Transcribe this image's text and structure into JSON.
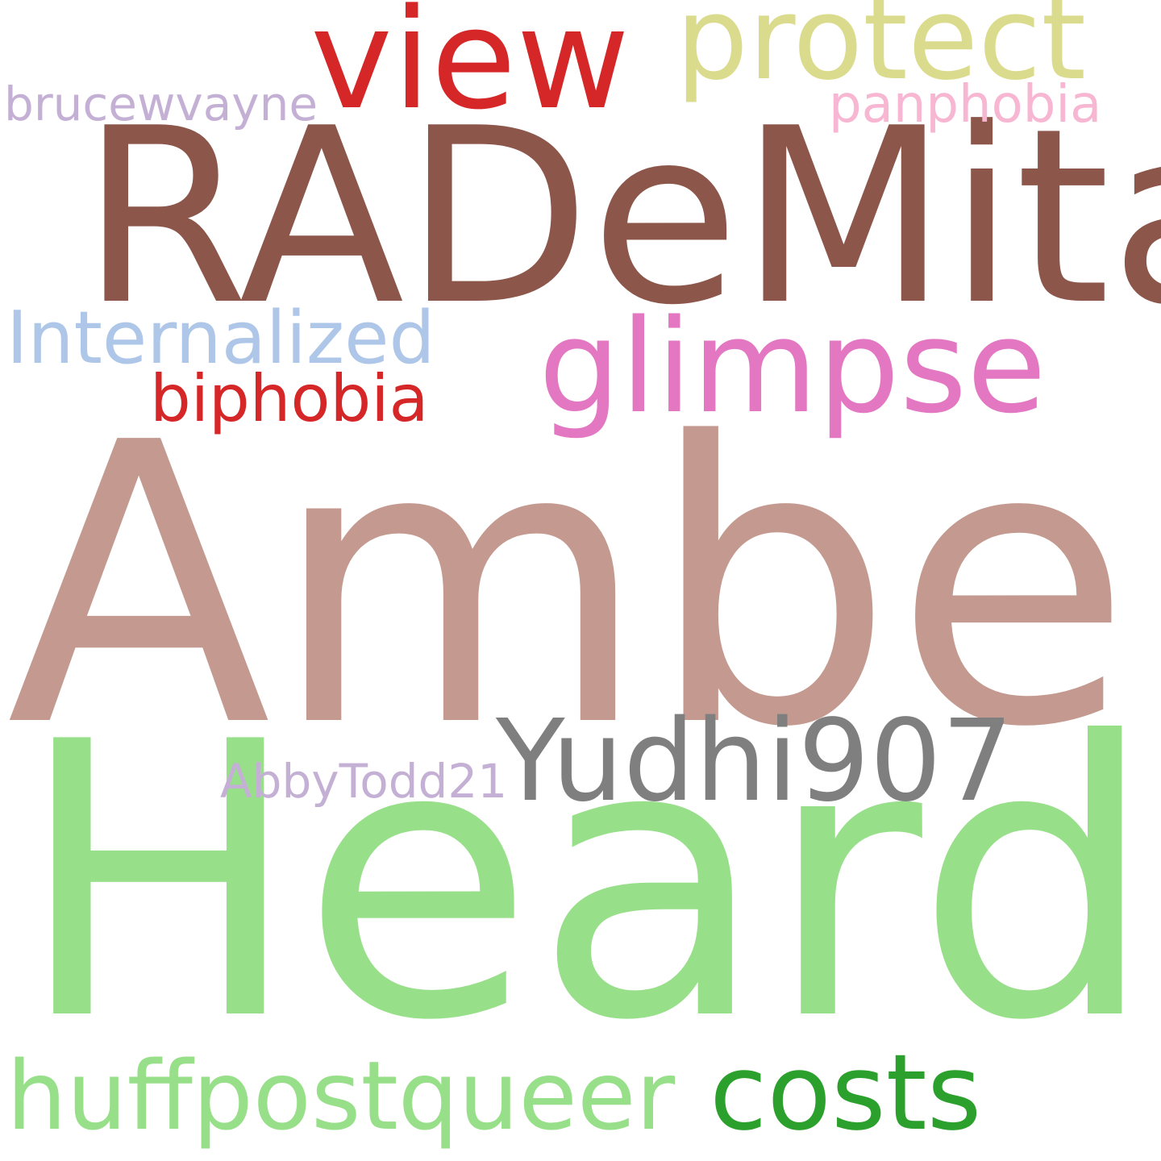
{
  "words": {
    "amber": {
      "text": "Amber",
      "color": "#c49a90"
    },
    "heard": {
      "text": "Heard",
      "color": "#98df8a"
    },
    "rademita": {
      "text": "RADeMita",
      "color": "#8c564b"
    },
    "glimpse": {
      "text": "glimpse",
      "color": "#e377c2"
    },
    "view": {
      "text": "view",
      "color": "#d62728"
    },
    "protect": {
      "text": "protect",
      "color": "#dbdb8d"
    },
    "yudhi907": {
      "text": "Yudhi907",
      "color": "#7f7f7f"
    },
    "costs": {
      "text": "costs",
      "color": "#2ca02c"
    },
    "huffpostqueer": {
      "text": "huffpostqueer",
      "color": "#98df8a"
    },
    "internalized": {
      "text": "Internalized",
      "color": "#aec7e8"
    },
    "biphobia": {
      "text": "biphobia",
      "color": "#d62728"
    },
    "panphobia": {
      "text": "panphobia",
      "color": "#f7b6d2"
    },
    "brucewvayne": {
      "text": "brucewvayne",
      "color": "#c5b0d5"
    },
    "abbytodd21": {
      "text": "AbbyTodd21",
      "color": "#c5b0d5"
    }
  }
}
